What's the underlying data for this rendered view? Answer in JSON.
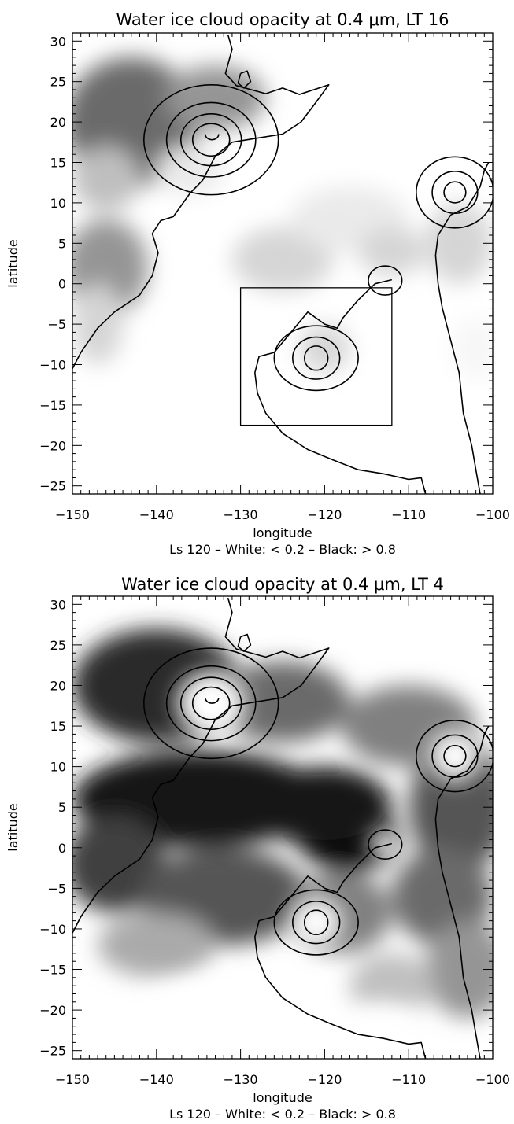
{
  "chart_data": [
    {
      "type": "heatmap",
      "title": "Water ice cloud opacity at 0.4 μm, LT 16",
      "xlabel": "longitude",
      "ylabel": "latitude",
      "caption": "Ls 120 – White: < 0.2 – Black: > 0.8",
      "xlim": [
        -150,
        -100
      ],
      "ylim": [
        -26,
        31
      ],
      "xticks": [
        -150,
        -140,
        -130,
        -120,
        -110,
        -100
      ],
      "yticks": [
        30,
        25,
        20,
        15,
        10,
        5,
        0,
        -5,
        -10,
        -15,
        -20,
        -25
      ],
      "scale": {
        "white_below": 0.2,
        "black_above": 0.8
      },
      "inset_box": {
        "lon": [
          -130,
          -112
        ],
        "lat": [
          -17.5,
          -0.5
        ]
      },
      "blobs": [
        {
          "lon": -143,
          "lat": 20,
          "rlon": 8,
          "rlat": 8,
          "v": 0.55
        },
        {
          "lon": -133,
          "lat": 23,
          "rlon": 6,
          "rlat": 4,
          "v": 0.45
        },
        {
          "lon": -146,
          "lat": 13,
          "rlon": 4,
          "rlat": 4,
          "v": 0.35
        },
        {
          "lon": -146,
          "lat": 2,
          "rlon": 5,
          "rlat": 6,
          "v": 0.45
        },
        {
          "lon": -147,
          "lat": -5,
          "rlon": 3,
          "rlat": 5,
          "v": 0.3
        },
        {
          "lon": -136,
          "lat": 14,
          "rlon": 4,
          "rlat": 3,
          "v": 0.25
        },
        {
          "lon": -125,
          "lat": 3,
          "rlon": 6,
          "rlat": 4,
          "v": 0.3
        },
        {
          "lon": -117,
          "lat": 8,
          "rlon": 7,
          "rlat": 4,
          "v": 0.25
        },
        {
          "lon": -112,
          "lat": 4,
          "rlon": 4,
          "rlat": 3,
          "v": 0.3
        },
        {
          "lon": -120,
          "lat": -8,
          "rlon": 3,
          "rlat": 3,
          "v": 0.3
        },
        {
          "lon": -104,
          "lat": 5,
          "rlon": 4,
          "rlat": 5,
          "v": 0.3
        },
        {
          "lon": -102,
          "lat": -8,
          "rlon": 3,
          "rlat": 4,
          "v": 0.22
        },
        {
          "lon": -107,
          "lat": -12,
          "rlon": 3,
          "rlat": 3,
          "v": 0.18
        }
      ]
    },
    {
      "type": "heatmap",
      "title": "Water ice cloud opacity at 0.4 μm, LT 4",
      "xlabel": "longitude",
      "ylabel": "latitude",
      "caption": "Ls 120 – White: < 0.2 – Black: > 0.8",
      "xlim": [
        -150,
        -100
      ],
      "ylim": [
        -26,
        31
      ],
      "xticks": [
        -150,
        -140,
        -130,
        -120,
        -110,
        -100
      ],
      "yticks": [
        30,
        25,
        20,
        15,
        10,
        5,
        0,
        -5,
        -10,
        -15,
        -20,
        -25
      ],
      "scale": {
        "white_below": 0.2,
        "black_above": 0.8
      },
      "blobs": [
        {
          "lon": -140,
          "lat": 20,
          "rlon": 10,
          "rlat": 7,
          "v": 0.7
        },
        {
          "lon": -125,
          "lat": 18,
          "rlon": 8,
          "rlat": 5,
          "v": 0.55
        },
        {
          "lon": -110,
          "lat": 15,
          "rlon": 8,
          "rlat": 5,
          "v": 0.5
        },
        {
          "lon": -135,
          "lat": 6,
          "rlon": 15,
          "rlat": 6,
          "v": 0.75
        },
        {
          "lon": -117,
          "lat": 1,
          "rlon": 6,
          "rlat": 4,
          "v": 1.0
        },
        {
          "lon": -120,
          "lat": 5,
          "rlon": 8,
          "rlat": 5,
          "v": 0.75
        },
        {
          "lon": -104,
          "lat": 5,
          "rlon": 6,
          "rlat": 8,
          "v": 0.6
        },
        {
          "lon": -145,
          "lat": -2,
          "rlon": 6,
          "rlat": 6,
          "v": 0.65
        },
        {
          "lon": -132,
          "lat": -6,
          "rlon": 10,
          "rlat": 6,
          "v": 0.6
        },
        {
          "lon": -118,
          "lat": -8,
          "rlon": 6,
          "rlat": 5,
          "v": 0.5
        },
        {
          "lon": -106,
          "lat": -6,
          "rlon": 6,
          "rlat": 6,
          "v": 0.55
        },
        {
          "lon": -103,
          "lat": -15,
          "rlon": 5,
          "rlat": 6,
          "v": 0.45
        },
        {
          "lon": -140,
          "lat": -12,
          "rlon": 7,
          "rlat": 4,
          "v": 0.4
        },
        {
          "lon": -112,
          "lat": -17,
          "rlon": 5,
          "rlat": 4,
          "v": 0.35
        }
      ]
    }
  ],
  "contours": {
    "coast": [
      [
        -131.5,
        30.8
      ],
      [
        -131,
        29
      ],
      [
        -131.8,
        26
      ],
      [
        -130.5,
        24.5
      ],
      [
        -127,
        23.5
      ],
      [
        -125,
        24.2
      ],
      [
        -123,
        23.4
      ],
      [
        -119.5,
        24.6
      ],
      [
        -121.2,
        22.2
      ],
      [
        -122.8,
        20
      ],
      [
        -125,
        18.5
      ],
      [
        -128,
        18
      ],
      [
        -131,
        17.5
      ],
      [
        -133,
        15.8
      ],
      [
        -134.5,
        12.8
      ],
      [
        -136,
        11.2
      ],
      [
        -138,
        8.3
      ],
      [
        -139.5,
        7.8
      ],
      [
        -140.5,
        6.2
      ],
      [
        -139.8,
        3.8
      ],
      [
        -140.5,
        1
      ],
      [
        -142,
        -1.4
      ],
      [
        -145,
        -3.5
      ],
      [
        -147,
        -5.5
      ],
      [
        -149,
        -8.5
      ],
      [
        -150,
        -10.5
      ]
    ],
    "caldera_lake": [
      [
        -130,
        26
      ],
      [
        -129.2,
        26.3
      ],
      [
        -128.8,
        25
      ],
      [
        -129.6,
        24.2
      ],
      [
        -130.3,
        24.8
      ],
      [
        -130,
        26
      ]
    ],
    "big_volcano_basin": [
      [
        -112,
        0.5
      ],
      [
        -114,
        0
      ],
      [
        -116,
        -2
      ],
      [
        -117.8,
        -4.2
      ],
      [
        -118.5,
        -5.5
      ],
      [
        -120,
        -5
      ],
      [
        -122,
        -3.5
      ],
      [
        -124,
        -6
      ],
      [
        -126,
        -8.5
      ],
      [
        -127.8,
        -9
      ],
      [
        -128.3,
        -11
      ],
      [
        -128,
        -13.5
      ],
      [
        -127,
        -16
      ],
      [
        -125,
        -18.5
      ],
      [
        -122,
        -20.5
      ],
      [
        -119,
        -21.8
      ],
      [
        -116,
        -23
      ],
      [
        -113,
        -23.5
      ],
      [
        -110,
        -24.2
      ],
      [
        -108.5,
        -24
      ],
      [
        -108,
        -26
      ]
    ],
    "east_coast": [
      [
        -100.5,
        15
      ],
      [
        -101,
        14
      ],
      [
        -101.5,
        12
      ],
      [
        -103,
        9.5
      ],
      [
        -105,
        8.5
      ],
      [
        -106.5,
        6
      ],
      [
        -106.8,
        3.5
      ],
      [
        -106.5,
        0
      ],
      [
        -106,
        -3
      ],
      [
        -105,
        -7
      ],
      [
        -104,
        -11
      ],
      [
        -103.5,
        -16
      ],
      [
        -102.5,
        -20
      ],
      [
        -102,
        -23
      ],
      [
        -101.5,
        -26
      ]
    ],
    "volcano_A": {
      "lon": -133.5,
      "lat": 17.8,
      "rings_lon": [
        8,
        5.3,
        3.6,
        2.2
      ],
      "rings_lat": [
        6.8,
        4.6,
        3.2,
        2
      ]
    },
    "volcano_B": {
      "lon": -104.5,
      "lat": 11.3,
      "rings_lon": [
        4.6,
        2.7,
        1.3
      ],
      "rings_lat": [
        4.4,
        2.6,
        1.3
      ]
    },
    "volcano_C": {
      "lon": -121,
      "lat": -9.2,
      "rings_lon": [
        5,
        2.8,
        1.4
      ],
      "rings_lat": [
        4,
        2.6,
        1.5
      ]
    },
    "volcano_D": {
      "lon": -112.8,
      "lat": 0.4,
      "rings_lon": [
        2
      ],
      "rings_lat": [
        1.8
      ]
    }
  }
}
